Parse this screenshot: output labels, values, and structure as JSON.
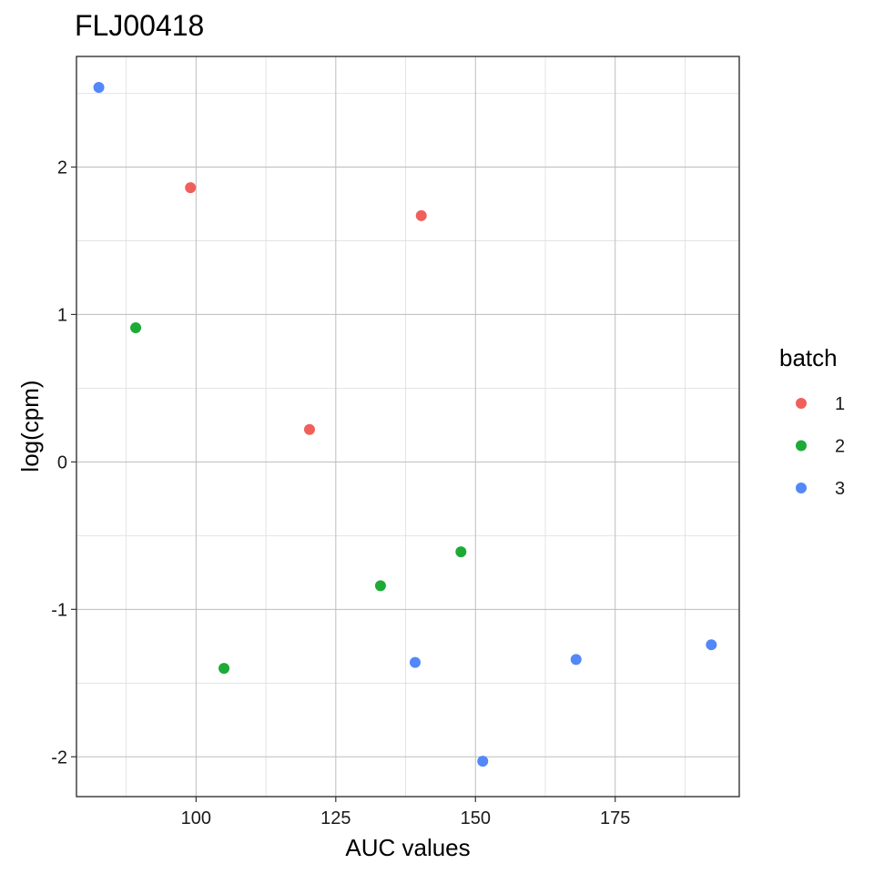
{
  "chart_data": {
    "type": "scatter",
    "title": "FLJ00418",
    "xlabel": "AUC values",
    "ylabel": "log(cpm)",
    "xlim": [
      78.6,
      197.2
    ],
    "ylim": [
      -2.27,
      2.75
    ],
    "x_ticks": [
      100,
      125,
      150,
      175
    ],
    "x_tick_labels": [
      "100",
      "125",
      "150",
      "175"
    ],
    "x_minor_ticks": [
      87.5,
      112.5,
      137.5,
      162.5,
      187.5
    ],
    "y_ticks": [
      -2,
      -1,
      0,
      1,
      2
    ],
    "y_tick_labels": [
      "-2",
      "-1",
      "0",
      "1",
      "2"
    ],
    "y_minor_ticks": [
      -1.5,
      -0.5,
      0.5,
      1.5,
      2.5
    ],
    "grid": true,
    "legend": {
      "title": "batch",
      "position": "right"
    },
    "series": [
      {
        "name": "1",
        "color": "#F0605A",
        "points": [
          {
            "x": 99.0,
            "y": 1.86
          },
          {
            "x": 140.3,
            "y": 1.67
          },
          {
            "x": 120.3,
            "y": 0.22
          }
        ]
      },
      {
        "name": "2",
        "color": "#1DAB36",
        "points": [
          {
            "x": 89.2,
            "y": 0.91
          },
          {
            "x": 105.0,
            "y": -1.4
          },
          {
            "x": 133.0,
            "y": -0.84
          },
          {
            "x": 147.4,
            "y": -0.61
          }
        ]
      },
      {
        "name": "3",
        "color": "#5288F7",
        "points": [
          {
            "x": 82.6,
            "y": 2.54
          },
          {
            "x": 139.2,
            "y": -1.36
          },
          {
            "x": 151.3,
            "y": -2.03
          },
          {
            "x": 168.0,
            "y": -1.34
          },
          {
            "x": 192.2,
            "y": -1.24
          }
        ]
      }
    ]
  }
}
